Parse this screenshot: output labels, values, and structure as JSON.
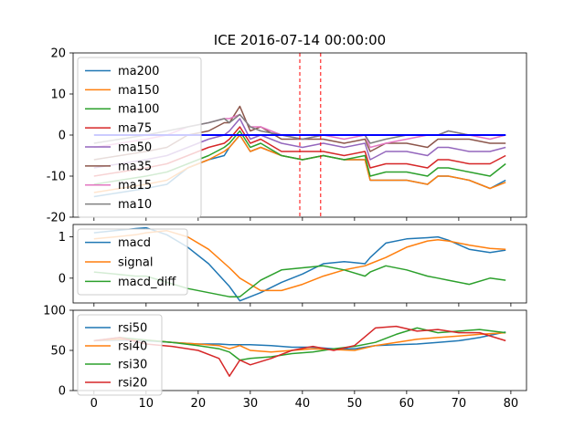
{
  "title": "ICE 2016-07-14 00:00:00",
  "chart_data": [
    {
      "type": "line",
      "xlim": [
        -4,
        83
      ],
      "ylim": [
        -20,
        20
      ],
      "yticks": [
        -20,
        -10,
        0,
        10,
        20
      ],
      "legend_position": "top-left",
      "vlines": {
        "x": [
          39.5,
          43.5
        ],
        "color": "#ff0000",
        "style": "dashed"
      },
      "hline": {
        "y": 0,
        "x": [
          0,
          79
        ],
        "color": "#0000ff"
      },
      "x": [
        0,
        5,
        10,
        14,
        18,
        22,
        25,
        26,
        28,
        30,
        32,
        36,
        40,
        44,
        48,
        52,
        53,
        56,
        60,
        64,
        66,
        68,
        72,
        76,
        79
      ],
      "series": [
        {
          "name": "ma200",
          "color": "#1f77b4",
          "values": [
            -15,
            -14,
            -13,
            -12,
            -8,
            -6,
            -5,
            -3,
            0,
            -4,
            -3,
            -5,
            -6,
            -5,
            -6,
            -6,
            -11,
            -11,
            -11,
            -12,
            -10,
            -10,
            -11,
            -13,
            -11
          ]
        },
        {
          "name": "ma150",
          "color": "#ff7f0e",
          "values": [
            -14,
            -13,
            -12,
            -11,
            -8,
            -6,
            -4,
            -3,
            0,
            -4,
            -3,
            -5,
            -6,
            -5,
            -6,
            -6,
            -11,
            -11,
            -11,
            -12,
            -10,
            -10,
            -11,
            -13,
            -11.5
          ]
        },
        {
          "name": "ma100",
          "color": "#2ca02c",
          "values": [
            -12,
            -11,
            -10,
            -9,
            -7,
            -5,
            -3,
            -2,
            1,
            -3,
            -2,
            -5,
            -6,
            -5,
            -6,
            -5,
            -10,
            -9,
            -9,
            -10,
            -8,
            -8,
            -9,
            -10,
            -7
          ]
        },
        {
          "name": "ma75",
          "color": "#d62728",
          "values": [
            -10,
            -9,
            -8,
            -7,
            -5,
            -3,
            -2,
            -1,
            2,
            -2,
            -1,
            -4,
            -4,
            -4,
            -5,
            -4,
            -8,
            -7,
            -7,
            -8,
            -6,
            -6,
            -7,
            -7,
            -5
          ]
        },
        {
          "name": "ma50",
          "color": "#9467bd",
          "values": [
            -8,
            -7,
            -6,
            -5,
            -3,
            -1,
            0,
            1,
            4,
            -1,
            0,
            -2,
            -3,
            -2,
            -3,
            -2,
            -6,
            -4,
            -4,
            -5,
            -3,
            -3,
            -4,
            -4,
            -3
          ]
        },
        {
          "name": "ma35",
          "color": "#8c564b",
          "values": [
            -6,
            -5,
            -4,
            -3,
            0,
            1,
            3,
            3,
            7,
            1,
            2,
            -1,
            -1,
            -1,
            -2,
            -1,
            -4,
            -2,
            -2,
            -3,
            -1,
            -1,
            -1,
            -2,
            -2
          ]
        },
        {
          "name": "ma15",
          "color": "#e377c2",
          "values": [
            -3,
            -2,
            -1,
            0,
            2,
            3,
            4,
            4,
            5,
            2,
            2,
            0,
            -1,
            0,
            -1,
            0,
            -3,
            -2,
            -1,
            0,
            0,
            1,
            0,
            -1,
            0
          ]
        },
        {
          "name": "ma10",
          "color": "#7f7f7f",
          "values": [
            -2,
            -1,
            0,
            1,
            2,
            3,
            4,
            3,
            5,
            2,
            1,
            0,
            -1,
            0,
            0,
            0,
            -2,
            -1,
            0,
            0,
            0,
            1,
            0,
            0,
            0
          ]
        }
      ]
    },
    {
      "type": "line",
      "xlim": [
        -4,
        83
      ],
      "ylim": [
        -0.6,
        1.3
      ],
      "yticks": [
        0,
        1
      ],
      "legend_position": "top-left",
      "x": [
        0,
        4,
        8,
        10,
        14,
        18,
        22,
        26,
        28,
        32,
        36,
        40,
        44,
        48,
        52,
        53,
        56,
        60,
        64,
        66,
        68,
        72,
        76,
        79
      ],
      "series": [
        {
          "name": "macd",
          "color": "#1f77b4",
          "values": [
            1.1,
            1.15,
            1.2,
            1.22,
            1.05,
            0.75,
            0.35,
            -0.2,
            -0.55,
            -0.35,
            -0.1,
            0.1,
            0.35,
            0.4,
            0.35,
            0.5,
            0.85,
            0.95,
            0.98,
            1.0,
            0.92,
            0.7,
            0.62,
            0.68
          ]
        },
        {
          "name": "signal",
          "color": "#ff7f0e",
          "values": [
            0.95,
            1.0,
            1.05,
            1.1,
            1.15,
            1.0,
            0.7,
            0.25,
            0.0,
            -0.3,
            -0.3,
            -0.15,
            0.05,
            0.2,
            0.3,
            0.35,
            0.5,
            0.75,
            0.9,
            0.93,
            0.9,
            0.8,
            0.72,
            0.7
          ]
        },
        {
          "name": "macd_diff",
          "color": "#2ca02c",
          "values": [
            0.15,
            0.1,
            0.05,
            0.05,
            -0.1,
            -0.25,
            -0.35,
            -0.45,
            -0.45,
            -0.05,
            0.2,
            0.25,
            0.3,
            0.2,
            0.05,
            0.15,
            0.3,
            0.2,
            0.05,
            0.0,
            -0.05,
            -0.15,
            0.0,
            -0.05
          ]
        }
      ]
    },
    {
      "type": "line",
      "xlim": [
        -4,
        83
      ],
      "ylim": [
        0,
        100
      ],
      "yticks": [
        0,
        50,
        100
      ],
      "xticks": [
        0,
        10,
        20,
        30,
        40,
        50,
        60,
        70,
        80
      ],
      "legend_position": "top-left",
      "x": [
        0,
        5,
        10,
        15,
        20,
        24,
        26,
        28,
        30,
        34,
        38,
        42,
        46,
        50,
        54,
        58,
        62,
        66,
        70,
        74,
        79
      ],
      "series": [
        {
          "name": "rsi50",
          "color": "#1f77b4",
          "values": [
            62,
            63,
            62,
            60,
            58,
            58,
            57,
            57,
            57,
            56,
            54,
            54,
            52,
            52,
            56,
            57,
            58,
            60,
            62,
            66,
            73
          ]
        },
        {
          "name": "rsi40",
          "color": "#ff7f0e",
          "values": [
            62,
            64,
            63,
            60,
            58,
            56,
            52,
            56,
            50,
            48,
            50,
            52,
            51,
            50,
            56,
            60,
            64,
            66,
            68,
            70,
            72
          ]
        },
        {
          "name": "rsi30",
          "color": "#2ca02c",
          "values": [
            62,
            66,
            63,
            60,
            56,
            52,
            48,
            38,
            40,
            42,
            46,
            48,
            52,
            55,
            60,
            70,
            78,
            72,
            74,
            76,
            72
          ]
        },
        {
          "name": "rsi20",
          "color": "#d62728",
          "values": [
            62,
            66,
            58,
            55,
            50,
            40,
            18,
            38,
            32,
            40,
            50,
            55,
            50,
            56,
            78,
            80,
            74,
            76,
            72,
            72,
            62
          ]
        }
      ]
    }
  ]
}
